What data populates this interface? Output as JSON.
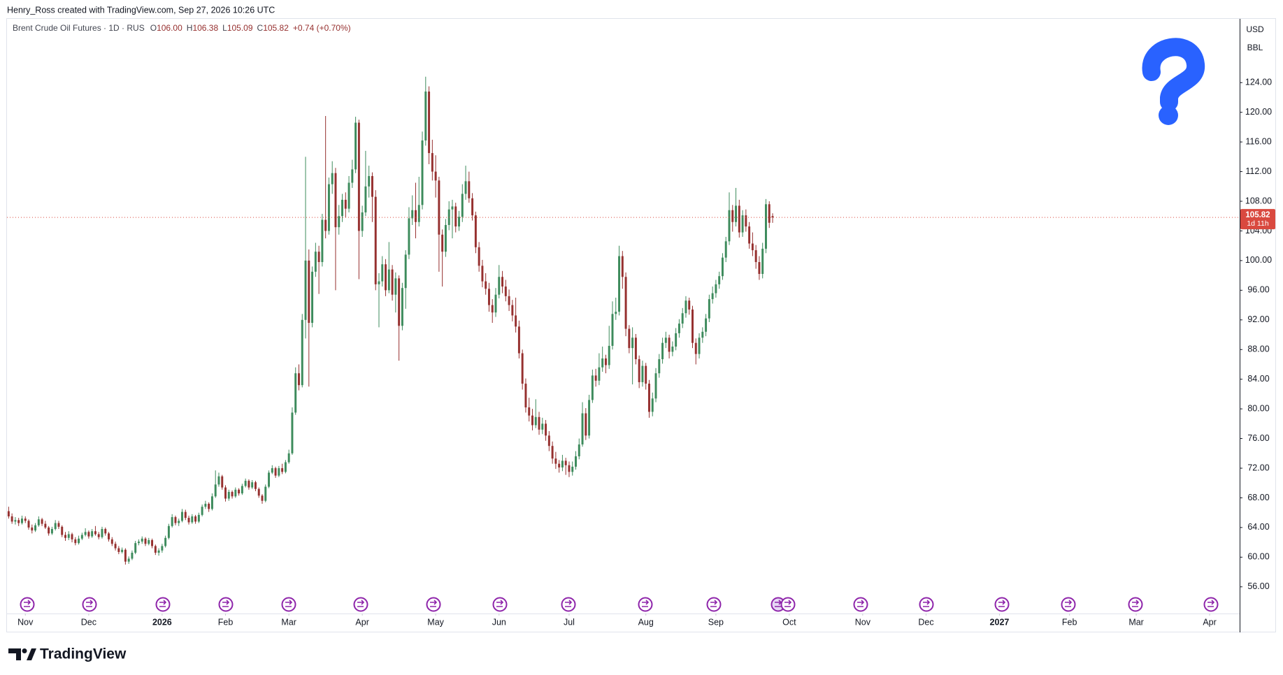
{
  "header": {
    "credit": "Henry_Ross created with TradingView.com, Sep 27, 2026 10:26 UTC"
  },
  "chart_data": {
    "type": "candlestick",
    "title": "Brent Crude Oil Futures · 1D · RUS",
    "ohlc_legend": [
      {
        "label": "O",
        "value": "106.00"
      },
      {
        "label": "H",
        "value": "106.38"
      },
      {
        "label": "L",
        "value": "105.09"
      },
      {
        "label": "C",
        "value": "105.82"
      }
    ],
    "change": "+0.74 (+0.70%)",
    "currency": "USD",
    "unit": "BBL",
    "countdown": "1d 11h",
    "up_color": "#3d8b5c",
    "down_color": "#96302f",
    "last_price_color": "#d9493f",
    "grid": false,
    "ylim": [
      52.4,
      132.6
    ],
    "yticks": [
      {
        "value": 56,
        "label": "56.00"
      },
      {
        "value": 60,
        "label": "60.00"
      },
      {
        "value": 64,
        "label": "64.00"
      },
      {
        "value": 68,
        "label": "68.00"
      },
      {
        "value": 72,
        "label": "72.00"
      },
      {
        "value": 76,
        "label": "76.00"
      },
      {
        "value": 80,
        "label": "80.00"
      },
      {
        "value": 84,
        "label": "84.00"
      },
      {
        "value": 88,
        "label": "88.00"
      },
      {
        "value": 92,
        "label": "92.00"
      },
      {
        "value": 96,
        "label": "96.00"
      },
      {
        "value": 100,
        "label": "100.00"
      },
      {
        "value": 104,
        "label": "104.00"
      },
      {
        "value": 108,
        "label": "108.00"
      },
      {
        "value": 112,
        "label": "112.00"
      },
      {
        "value": 116,
        "label": "116.00"
      },
      {
        "value": 120,
        "label": "120.00"
      },
      {
        "value": 124,
        "label": "124.00"
      }
    ],
    "xlim": [
      -0.5,
      369
    ],
    "xticks": [
      {
        "value": 5,
        "label": "Nov"
      },
      {
        "value": 24,
        "label": "Dec"
      },
      {
        "value": 46,
        "label": "2026"
      },
      {
        "value": 65,
        "label": "Feb"
      },
      {
        "value": 84,
        "label": "Mar"
      },
      {
        "value": 106,
        "label": "Apr"
      },
      {
        "value": 128,
        "label": "May"
      },
      {
        "value": 147,
        "label": "Jun"
      },
      {
        "value": 168,
        "label": "Jul"
      },
      {
        "value": 191,
        "label": "Aug"
      },
      {
        "value": 212,
        "label": "Sep"
      },
      {
        "value": 234,
        "label": "Oct"
      },
      {
        "value": 256,
        "label": "Nov"
      },
      {
        "value": 275,
        "label": "Dec"
      },
      {
        "value": 297,
        "label": "2027"
      },
      {
        "value": 318,
        "label": "Feb"
      },
      {
        "value": 338,
        "label": "Mar"
      },
      {
        "value": 360,
        "label": "Apr"
      }
    ],
    "candles": [
      [
        66.2,
        66.8,
        65.2,
        65.5
      ],
      [
        65.5,
        65.9,
        64.5,
        64.8
      ],
      [
        64.8,
        65.4,
        64.4,
        65.0
      ],
      [
        65.0,
        65.3,
        64.2,
        64.6
      ],
      [
        64.6,
        65.6,
        64.4,
        65.2
      ],
      [
        65.2,
        65.5,
        64.6,
        64.9
      ],
      [
        64.9,
        65.1,
        63.7,
        64.0
      ],
      [
        64.0,
        64.4,
        63.2,
        63.6
      ],
      [
        63.6,
        64.6,
        63.4,
        64.3
      ],
      [
        64.3,
        65.5,
        64.1,
        65.1
      ],
      [
        65.1,
        65.3,
        64.2,
        64.5
      ],
      [
        64.5,
        64.9,
        63.8,
        64.0
      ],
      [
        64.0,
        64.2,
        62.9,
        63.2
      ],
      [
        63.2,
        64.1,
        63.0,
        63.8
      ],
      [
        63.8,
        65.0,
        63.6,
        64.6
      ],
      [
        64.6,
        64.9,
        63.8,
        64.1
      ],
      [
        64.1,
        64.3,
        62.7,
        63.0
      ],
      [
        63.0,
        63.4,
        62.2,
        62.6
      ],
      [
        62.6,
        63.5,
        62.3,
        63.1
      ],
      [
        63.1,
        63.3,
        62.0,
        62.4
      ],
      [
        62.4,
        62.7,
        61.6,
        61.9
      ],
      [
        61.9,
        62.9,
        61.7,
        62.5
      ],
      [
        62.5,
        63.3,
        62.3,
        63.0
      ],
      [
        63.0,
        63.9,
        62.8,
        63.4
      ],
      [
        63.4,
        63.6,
        62.5,
        62.8
      ],
      [
        62.8,
        63.8,
        62.6,
        63.5
      ],
      [
        63.5,
        64.2,
        62.9,
        63.1
      ],
      [
        63.1,
        63.4,
        62.4,
        62.7
      ],
      [
        62.7,
        64.1,
        62.5,
        63.8
      ],
      [
        63.8,
        64.0,
        62.9,
        63.2
      ],
      [
        63.2,
        63.4,
        62.1,
        62.4
      ],
      [
        62.4,
        62.7,
        61.5,
        61.8
      ],
      [
        61.8,
        62.1,
        60.9,
        61.2
      ],
      [
        61.2,
        61.5,
        60.4,
        60.7
      ],
      [
        60.7,
        61.3,
        60.5,
        61.0
      ],
      [
        61.0,
        61.2,
        59.0,
        59.4
      ],
      [
        59.4,
        60.1,
        59.1,
        59.8
      ],
      [
        59.8,
        60.9,
        59.6,
        60.6
      ],
      [
        60.6,
        62.2,
        60.4,
        61.9
      ],
      [
        61.9,
        62.4,
        61.6,
        62.1
      ],
      [
        62.1,
        62.8,
        61.8,
        62.5
      ],
      [
        62.5,
        62.7,
        61.5,
        61.8
      ],
      [
        61.8,
        62.6,
        61.6,
        62.3
      ],
      [
        62.3,
        62.5,
        61.2,
        61.5
      ],
      [
        61.5,
        61.7,
        60.3,
        60.6
      ],
      [
        60.6,
        61.2,
        60.2,
        60.9
      ],
      [
        60.9,
        61.8,
        60.6,
        61.5
      ],
      [
        61.5,
        62.9,
        61.3,
        62.6
      ],
      [
        62.6,
        64.5,
        62.4,
        64.2
      ],
      [
        64.2,
        65.8,
        64.0,
        65.4
      ],
      [
        65.4,
        65.6,
        64.3,
        64.6
      ],
      [
        64.6,
        65.2,
        64.2,
        64.9
      ],
      [
        64.9,
        66.5,
        64.7,
        66.1
      ],
      [
        66.1,
        66.4,
        65.0,
        65.3
      ],
      [
        65.3,
        65.6,
        64.4,
        64.7
      ],
      [
        64.7,
        65.8,
        64.5,
        65.5
      ],
      [
        65.5,
        65.7,
        64.5,
        64.8
      ],
      [
        64.8,
        66.0,
        64.6,
        65.7
      ],
      [
        65.7,
        67.1,
        65.5,
        66.8
      ],
      [
        66.8,
        67.6,
        66.5,
        67.2
      ],
      [
        67.2,
        67.4,
        66.1,
        66.5
      ],
      [
        66.5,
        68.6,
        66.3,
        68.2
      ],
      [
        68.2,
        71.7,
        68.0,
        69.8
      ],
      [
        69.8,
        71.4,
        69.5,
        70.9
      ],
      [
        70.9,
        71.1,
        69.1,
        69.4
      ],
      [
        69.4,
        69.7,
        67.5,
        67.9
      ],
      [
        67.9,
        69.1,
        67.6,
        68.8
      ],
      [
        68.8,
        69.0,
        67.9,
        68.2
      ],
      [
        68.2,
        69.4,
        68.0,
        69.1
      ],
      [
        69.1,
        69.3,
        68.3,
        68.6
      ],
      [
        68.6,
        69.9,
        68.4,
        69.6
      ],
      [
        69.6,
        70.6,
        69.4,
        70.3
      ],
      [
        70.3,
        70.5,
        69.1,
        69.4
      ],
      [
        69.4,
        70.4,
        69.2,
        70.1
      ],
      [
        70.1,
        70.3,
        68.9,
        69.2
      ],
      [
        69.2,
        69.4,
        68.0,
        68.3
      ],
      [
        68.3,
        68.5,
        67.2,
        67.6
      ],
      [
        67.6,
        69.8,
        67.4,
        69.5
      ],
      [
        69.5,
        71.7,
        69.3,
        71.4
      ],
      [
        71.4,
        72.4,
        71.2,
        72.0
      ],
      [
        72.0,
        72.2,
        70.7,
        71.0
      ],
      [
        71.0,
        72.3,
        70.8,
        72.0
      ],
      [
        72.0,
        72.6,
        71.2,
        71.5
      ],
      [
        71.5,
        73.1,
        71.3,
        72.8
      ],
      [
        72.8,
        74.5,
        72.6,
        74.0
      ],
      [
        74.0,
        80.2,
        73.8,
        79.5
      ],
      [
        79.5,
        85.6,
        79.2,
        84.8
      ],
      [
        84.8,
        86.0,
        82.5,
        83.2
      ],
      [
        83.2,
        92.8,
        82.9,
        92.0
      ],
      [
        92.0,
        114.0,
        89.5,
        100.0
      ],
      [
        100.0,
        101.5,
        83.0,
        91.6
      ],
      [
        91.6,
        99.2,
        91.0,
        98.5
      ],
      [
        98.5,
        102.4,
        97.8,
        101.2
      ],
      [
        101.2,
        102.0,
        95.5,
        99.8
      ],
      [
        99.8,
        106.3,
        99.2,
        105.5
      ],
      [
        105.5,
        119.5,
        103.0,
        104.0
      ],
      [
        104.0,
        111.2,
        103.5,
        110.3
      ],
      [
        110.3,
        113.4,
        109.0,
        111.8
      ],
      [
        111.8,
        112.5,
        96.0,
        104.5
      ],
      [
        104.5,
        107.5,
        103.5,
        106.0
      ],
      [
        106.0,
        109.0,
        105.2,
        108.2
      ],
      [
        108.2,
        109.2,
        105.8,
        107.0
      ],
      [
        107.0,
        111.4,
        106.5,
        110.5
      ],
      [
        110.5,
        113.6,
        109.8,
        112.3
      ],
      [
        112.3,
        119.4,
        111.8,
        118.6
      ],
      [
        118.6,
        119.0,
        97.5,
        104.0
      ],
      [
        104.0,
        107.4,
        103.2,
        106.5
      ],
      [
        106.5,
        114.8,
        106.0,
        110.0
      ],
      [
        110.0,
        112.8,
        108.5,
        111.4
      ],
      [
        111.4,
        111.9,
        105.2,
        108.6
      ],
      [
        108.6,
        109.5,
        96.0,
        96.8
      ],
      [
        96.8,
        98.3,
        91.0,
        97.2
      ],
      [
        97.2,
        100.6,
        96.5,
        99.5
      ],
      [
        99.5,
        100.2,
        95.2,
        96.0
      ],
      [
        96.0,
        102.5,
        95.6,
        98.8
      ],
      [
        98.8,
        99.4,
        94.6,
        95.4
      ],
      [
        95.4,
        98.4,
        93.0,
        97.6
      ],
      [
        97.6,
        98.0,
        86.5,
        91.2
      ],
      [
        91.2,
        97.0,
        90.6,
        96.3
      ],
      [
        96.3,
        101.4,
        93.5,
        100.8
      ],
      [
        100.8,
        107.2,
        100.2,
        105.7
      ],
      [
        105.7,
        108.8,
        104.8,
        106.8
      ],
      [
        106.8,
        110.5,
        103.0,
        105.2
      ],
      [
        105.2,
        111.3,
        104.6,
        107.5
      ],
      [
        107.5,
        117.4,
        106.9,
        116.2
      ],
      [
        116.2,
        124.8,
        115.5,
        122.8
      ],
      [
        122.8,
        123.5,
        113.0,
        114.5
      ],
      [
        114.5,
        116.3,
        110.8,
        112.0
      ],
      [
        112.0,
        114.2,
        108.5,
        110.8
      ],
      [
        110.8,
        111.3,
        98.5,
        103.5
      ],
      [
        103.5,
        104.2,
        96.5,
        101.2
      ],
      [
        101.2,
        105.6,
        100.5,
        104.8
      ],
      [
        104.8,
        108.0,
        104.1,
        106.9
      ],
      [
        106.9,
        108.2,
        103.0,
        107.3
      ],
      [
        107.3,
        107.8,
        103.8,
        104.6
      ],
      [
        104.6,
        106.7,
        104.0,
        105.9
      ],
      [
        105.9,
        110.3,
        105.2,
        109.0
      ],
      [
        109.0,
        112.8,
        108.2,
        110.7
      ],
      [
        110.7,
        112.0,
        107.8,
        108.4
      ],
      [
        108.4,
        109.1,
        105.4,
        106.1
      ],
      [
        106.1,
        106.6,
        101.0,
        101.8
      ],
      [
        101.8,
        102.5,
        98.5,
        99.3
      ],
      [
        99.3,
        100.1,
        96.4,
        97.2
      ],
      [
        97.2,
        98.3,
        95.4,
        96.2
      ],
      [
        96.2,
        97.0,
        93.1,
        94.0
      ],
      [
        94.0,
        94.8,
        91.6,
        93.0
      ],
      [
        93.0,
        96.3,
        92.4,
        95.4
      ],
      [
        95.4,
        99.4,
        94.9,
        97.8
      ],
      [
        97.8,
        98.6,
        95.6,
        96.5
      ],
      [
        96.5,
        97.4,
        94.5,
        95.2
      ],
      [
        95.2,
        96.1,
        93.2,
        94.0
      ],
      [
        94.0,
        94.7,
        91.8,
        92.6
      ],
      [
        92.6,
        95.0,
        90.3,
        91.1
      ],
      [
        91.1,
        91.9,
        86.8,
        87.5
      ],
      [
        87.5,
        88.0,
        82.6,
        83.4
      ],
      [
        83.4,
        84.1,
        79.5,
        80.2
      ],
      [
        80.2,
        81.5,
        78.3,
        79.1
      ],
      [
        79.1,
        80.0,
        77.1,
        77.8
      ],
      [
        77.8,
        81.3,
        77.4,
        78.9
      ],
      [
        78.9,
        79.6,
        76.5,
        77.2
      ],
      [
        77.2,
        78.8,
        76.6,
        78.0
      ],
      [
        78.0,
        78.5,
        75.7,
        76.4
      ],
      [
        76.4,
        77.0,
        74.3,
        75.0
      ],
      [
        75.0,
        75.6,
        72.6,
        73.3
      ],
      [
        73.3,
        74.2,
        71.9,
        72.6
      ],
      [
        72.6,
        73.1,
        71.4,
        72.1
      ],
      [
        72.1,
        73.8,
        71.6,
        73.0
      ],
      [
        73.0,
        73.4,
        71.1,
        72.4
      ],
      [
        72.4,
        72.9,
        70.8,
        71.5
      ],
      [
        71.5,
        72.9,
        71.0,
        72.2
      ],
      [
        72.2,
        74.3,
        71.8,
        73.6
      ],
      [
        73.6,
        76.0,
        73.2,
        75.2
      ],
      [
        75.2,
        80.9,
        74.9,
        79.4
      ],
      [
        79.4,
        80.1,
        75.8,
        76.4
      ],
      [
        76.4,
        81.9,
        76.0,
        81.2
      ],
      [
        81.2,
        85.3,
        80.8,
        84.5
      ],
      [
        84.5,
        85.4,
        83.0,
        83.8
      ],
      [
        83.8,
        87.5,
        83.2,
        85.6
      ],
      [
        85.6,
        88.4,
        85.0,
        86.8
      ],
      [
        86.8,
        87.3,
        84.8,
        85.9
      ],
      [
        85.9,
        91.2,
        85.4,
        88.5
      ],
      [
        88.5,
        94.5,
        88.0,
        92.8
      ],
      [
        92.8,
        95.0,
        92.0,
        93.1
      ],
      [
        93.1,
        102.0,
        92.6,
        100.6
      ],
      [
        100.6,
        101.3,
        96.2,
        97.8
      ],
      [
        97.8,
        98.4,
        89.8,
        90.8
      ],
      [
        90.8,
        91.3,
        87.5,
        88.2
      ],
      [
        88.2,
        91.0,
        83.3,
        89.6
      ],
      [
        89.6,
        90.1,
        86.0,
        86.7
      ],
      [
        86.7,
        87.2,
        82.8,
        83.6
      ],
      [
        83.6,
        86.5,
        83.0,
        85.8
      ],
      [
        85.8,
        86.2,
        82.6,
        83.4
      ],
      [
        83.4,
        83.9,
        78.8,
        79.6
      ],
      [
        79.6,
        82.2,
        79.0,
        81.4
      ],
      [
        81.4,
        85.5,
        80.9,
        84.8
      ],
      [
        84.8,
        87.4,
        84.2,
        86.7
      ],
      [
        86.7,
        89.6,
        86.1,
        88.9
      ],
      [
        88.9,
        90.4,
        88.2,
        89.6
      ],
      [
        89.6,
        90.0,
        86.8,
        87.7
      ],
      [
        87.7,
        89.1,
        87.1,
        88.4
      ],
      [
        88.4,
        90.9,
        87.9,
        90.2
      ],
      [
        90.2,
        92.1,
        89.6,
        91.5
      ],
      [
        91.5,
        93.6,
        90.9,
        92.9
      ],
      [
        92.9,
        95.2,
        92.3,
        94.6
      ],
      [
        94.6,
        95.0,
        92.7,
        93.4
      ],
      [
        93.4,
        93.9,
        88.2,
        88.9
      ],
      [
        88.9,
        89.5,
        86.0,
        87.4
      ],
      [
        87.4,
        90.2,
        86.8,
        89.6
      ],
      [
        89.6,
        91.0,
        88.9,
        90.4
      ],
      [
        90.4,
        92.8,
        89.8,
        92.2
      ],
      [
        92.2,
        95.4,
        91.7,
        94.8
      ],
      [
        94.8,
        96.5,
        94.2,
        95.6
      ],
      [
        95.6,
        97.4,
        95.0,
        96.8
      ],
      [
        96.8,
        98.5,
        96.2,
        97.9
      ],
      [
        97.9,
        101.0,
        97.4,
        100.4
      ],
      [
        100.4,
        103.2,
        99.8,
        102.6
      ],
      [
        102.6,
        109.2,
        102.1,
        106.8
      ],
      [
        106.8,
        107.5,
        103.9,
        105.2
      ],
      [
        105.2,
        109.8,
        104.6,
        107.4
      ],
      [
        107.4,
        108.2,
        103.1,
        103.8
      ],
      [
        103.8,
        106.8,
        103.2,
        106.1
      ],
      [
        106.1,
        106.9,
        103.9,
        104.6
      ],
      [
        104.6,
        105.2,
        101.6,
        102.3
      ],
      [
        102.3,
        103.8,
        100.6,
        101.4
      ],
      [
        101.4,
        102.1,
        98.9,
        99.8
      ],
      [
        99.8,
        100.6,
        97.4,
        98.2
      ],
      [
        98.2,
        102.4,
        97.6,
        101.6
      ],
      [
        101.6,
        108.3,
        101.0,
        107.6
      ],
      [
        107.6,
        108.0,
        104.4,
        105.1
      ],
      [
        106.0,
        106.38,
        105.09,
        105.82
      ]
    ]
  },
  "footer": {
    "brand": "TradingView"
  }
}
